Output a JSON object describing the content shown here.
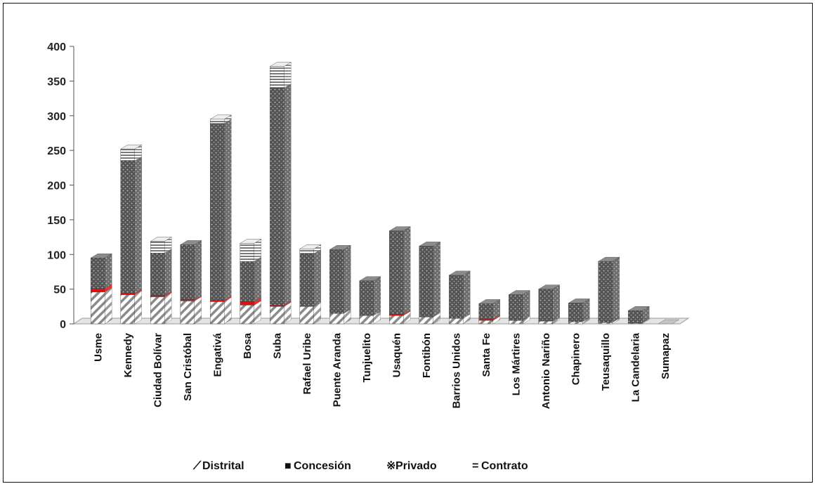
{
  "chart_data": {
    "type": "bar",
    "stacked": true,
    "categories": [
      "Usme",
      "Kennedy",
      "Ciudad Bolívar",
      "San Cristóbal",
      "Engativá",
      "Bosa",
      "Suba",
      "Rafael Uribe",
      "Puente Aranda",
      "Tunjuelito",
      "Usaquén",
      "Fontibón",
      "Barrios Unidos",
      "Santa Fe",
      "Los Mártires",
      "Antonio Nariño",
      "Chapinero",
      "Teusaquillo",
      "La Candelaria",
      "Sumapaz"
    ],
    "series": [
      {
        "name": "Distrital",
        "color": "#ffffff",
        "values": [
          46,
          42,
          39,
          33,
          32,
          27,
          25,
          25,
          15,
          12,
          12,
          10,
          8,
          5,
          5,
          4,
          3,
          2,
          1,
          0
        ]
      },
      {
        "name": "Concesión",
        "color": "#dd1111",
        "values": [
          5,
          2,
          2,
          2,
          2,
          5,
          2,
          0,
          0,
          0,
          2,
          0,
          0,
          2,
          0,
          0,
          0,
          0,
          0,
          0
        ]
      },
      {
        "name": "Privado",
        "color": "#555555",
        "values": [
          44,
          191,
          61,
          79,
          255,
          58,
          313,
          76,
          92,
          50,
          120,
          102,
          62,
          22,
          37,
          46,
          27,
          88,
          18,
          0
        ]
      },
      {
        "name": "Contrato",
        "color": "#cccccc",
        "values": [
          0,
          17,
          17,
          0,
          6,
          26,
          31,
          7,
          0,
          0,
          0,
          0,
          0,
          0,
          0,
          0,
          0,
          0,
          0,
          0
        ]
      }
    ],
    "yticks": [
      "0",
      "50",
      "100",
      "150",
      "200",
      "250",
      "300",
      "350",
      "400"
    ],
    "ylim": [
      0,
      400
    ],
    "legend": [
      {
        "symbol": "⟋",
        "label": "Distrital"
      },
      {
        "symbol": "■",
        "label": "Concesión"
      },
      {
        "symbol": "※",
        "label": "Privado"
      },
      {
        "symbol": "=",
        "label": "Contrato"
      }
    ],
    "legend_position": "bottom",
    "grid": false
  }
}
